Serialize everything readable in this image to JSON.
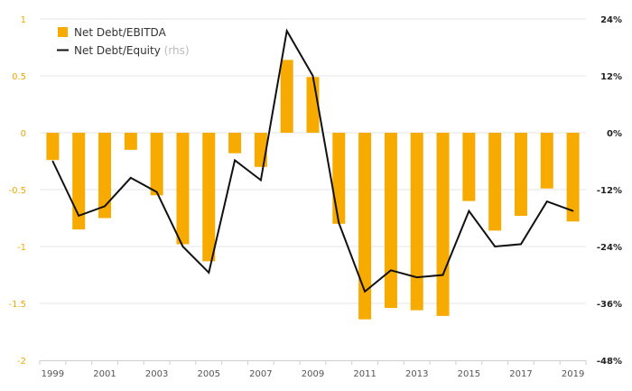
{
  "chart_data": {
    "type": "bar",
    "x": [
      "1999",
      "2000",
      "2001",
      "2002",
      "2003",
      "2004",
      "2005",
      "2006",
      "2007",
      "2008",
      "2009",
      "2010",
      "2011",
      "2012",
      "2013",
      "2014",
      "2015",
      "2016",
      "2017",
      "2018",
      "2019"
    ],
    "x_tick_labels": [
      "1999",
      "2001",
      "2003",
      "2005",
      "2007",
      "2009",
      "2011",
      "2013",
      "2015",
      "2017",
      "2019"
    ],
    "series": [
      {
        "name": "Net Debt/EBITDA",
        "type": "bar",
        "axis": "left",
        "color": "#f7ab00",
        "values": [
          -0.24,
          -0.85,
          -0.75,
          -0.15,
          -0.55,
          -0.98,
          -1.13,
          -0.18,
          -0.3,
          0.64,
          0.49,
          -0.8,
          -1.64,
          -1.54,
          -1.56,
          -1.61,
          -0.6,
          -0.86,
          -0.73,
          -0.49,
          -0.78
        ]
      },
      {
        "name": "Net Debt/Equity",
        "name_suffix": "(rhs)",
        "type": "line",
        "axis": "right",
        "color": "#111111",
        "values": [
          -6,
          -17.5,
          -15.5,
          -9.5,
          -12.5,
          -24,
          -29.5,
          -5.8,
          -10,
          21.5,
          12,
          -19,
          -33.5,
          -29,
          -30.5,
          -30,
          -16.5,
          -24,
          -23.5,
          -14.5,
          -16.5
        ]
      }
    ],
    "y_left": {
      "ylim": [
        -2,
        1
      ],
      "ticks": [
        1,
        0.5,
        0,
        -0.5,
        -1,
        -1.5,
        -2
      ],
      "tick_labels": [
        "1",
        "0.5",
        "0",
        "-0.5",
        "-1",
        "-1.5",
        "-2"
      ]
    },
    "y_right": {
      "ylim": [
        -48,
        24
      ],
      "ticks": [
        24,
        12,
        0,
        -12,
        -24,
        -36,
        -48
      ],
      "tick_labels": [
        "24%",
        "12%",
        "0%",
        "-12%",
        "-24%",
        "-36%",
        "-48%"
      ]
    },
    "grid": true,
    "legend": "top-left"
  }
}
